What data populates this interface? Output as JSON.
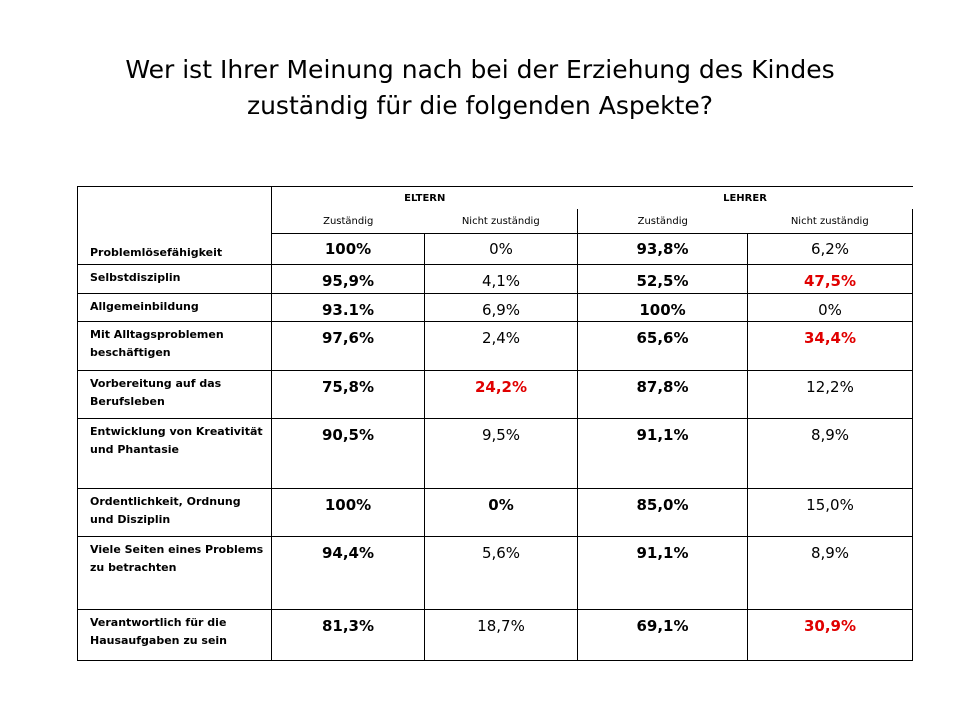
{
  "title_line1": "Wer ist Ihrer Meinung nach bei der Erziehung des Kindes",
  "title_line2": "zuständig für die folgenden Aspekte?",
  "groups": [
    "ELTERN",
    "LEHRER"
  ],
  "subheaders": [
    "Zuständig",
    "Nicht zuständig",
    "Zuständig",
    "Nicht zuständig"
  ],
  "rows": [
    {
      "label": "Problemlösefähigkeit",
      "values": [
        "100%",
        "0%",
        "93,8%",
        "6,2%"
      ]
    },
    {
      "label": "Selbstdisziplin",
      "values": [
        "95,9%",
        "4,1%",
        "52,5%",
        "47,5%"
      ]
    },
    {
      "label": "Allgemeinbildung",
      "values": [
        "93.1%",
        "6,9%",
        "100%",
        "0%"
      ]
    },
    {
      "label": "Mit Alltagsproblemen beschäftigen",
      "values": [
        "97,6%",
        "2,4%",
        "65,6%",
        "34,4%"
      ]
    },
    {
      "label": "Vorbereitung auf das Berufsleben",
      "values": [
        "75,8%",
        "24,2%",
        "87,8%",
        "12,2%"
      ]
    },
    {
      "label": "Entwicklung von Kreativität und Phantasie",
      "values": [
        "90,5%",
        "9,5%",
        "91,1%",
        "8,9%"
      ]
    },
    {
      "label": "Ordentlichkeit, Ordnung und Disziplin",
      "values": [
        "100%",
        "0%",
        "85,0%",
        "15,0%"
      ]
    },
    {
      "label": "Viele Seiten eines Problems zu betrachten",
      "values": [
        "94,4%",
        "5,6%",
        "91,1%",
        "8,9%"
      ]
    },
    {
      "label": "Verantwortlich für die Hausaufgaben zu sein",
      "values": [
        "81,3%",
        "18,7%",
        "69,1%",
        "30,9%"
      ]
    }
  ],
  "colors": {
    "highlight": "#e00000",
    "text": "#000000"
  }
}
